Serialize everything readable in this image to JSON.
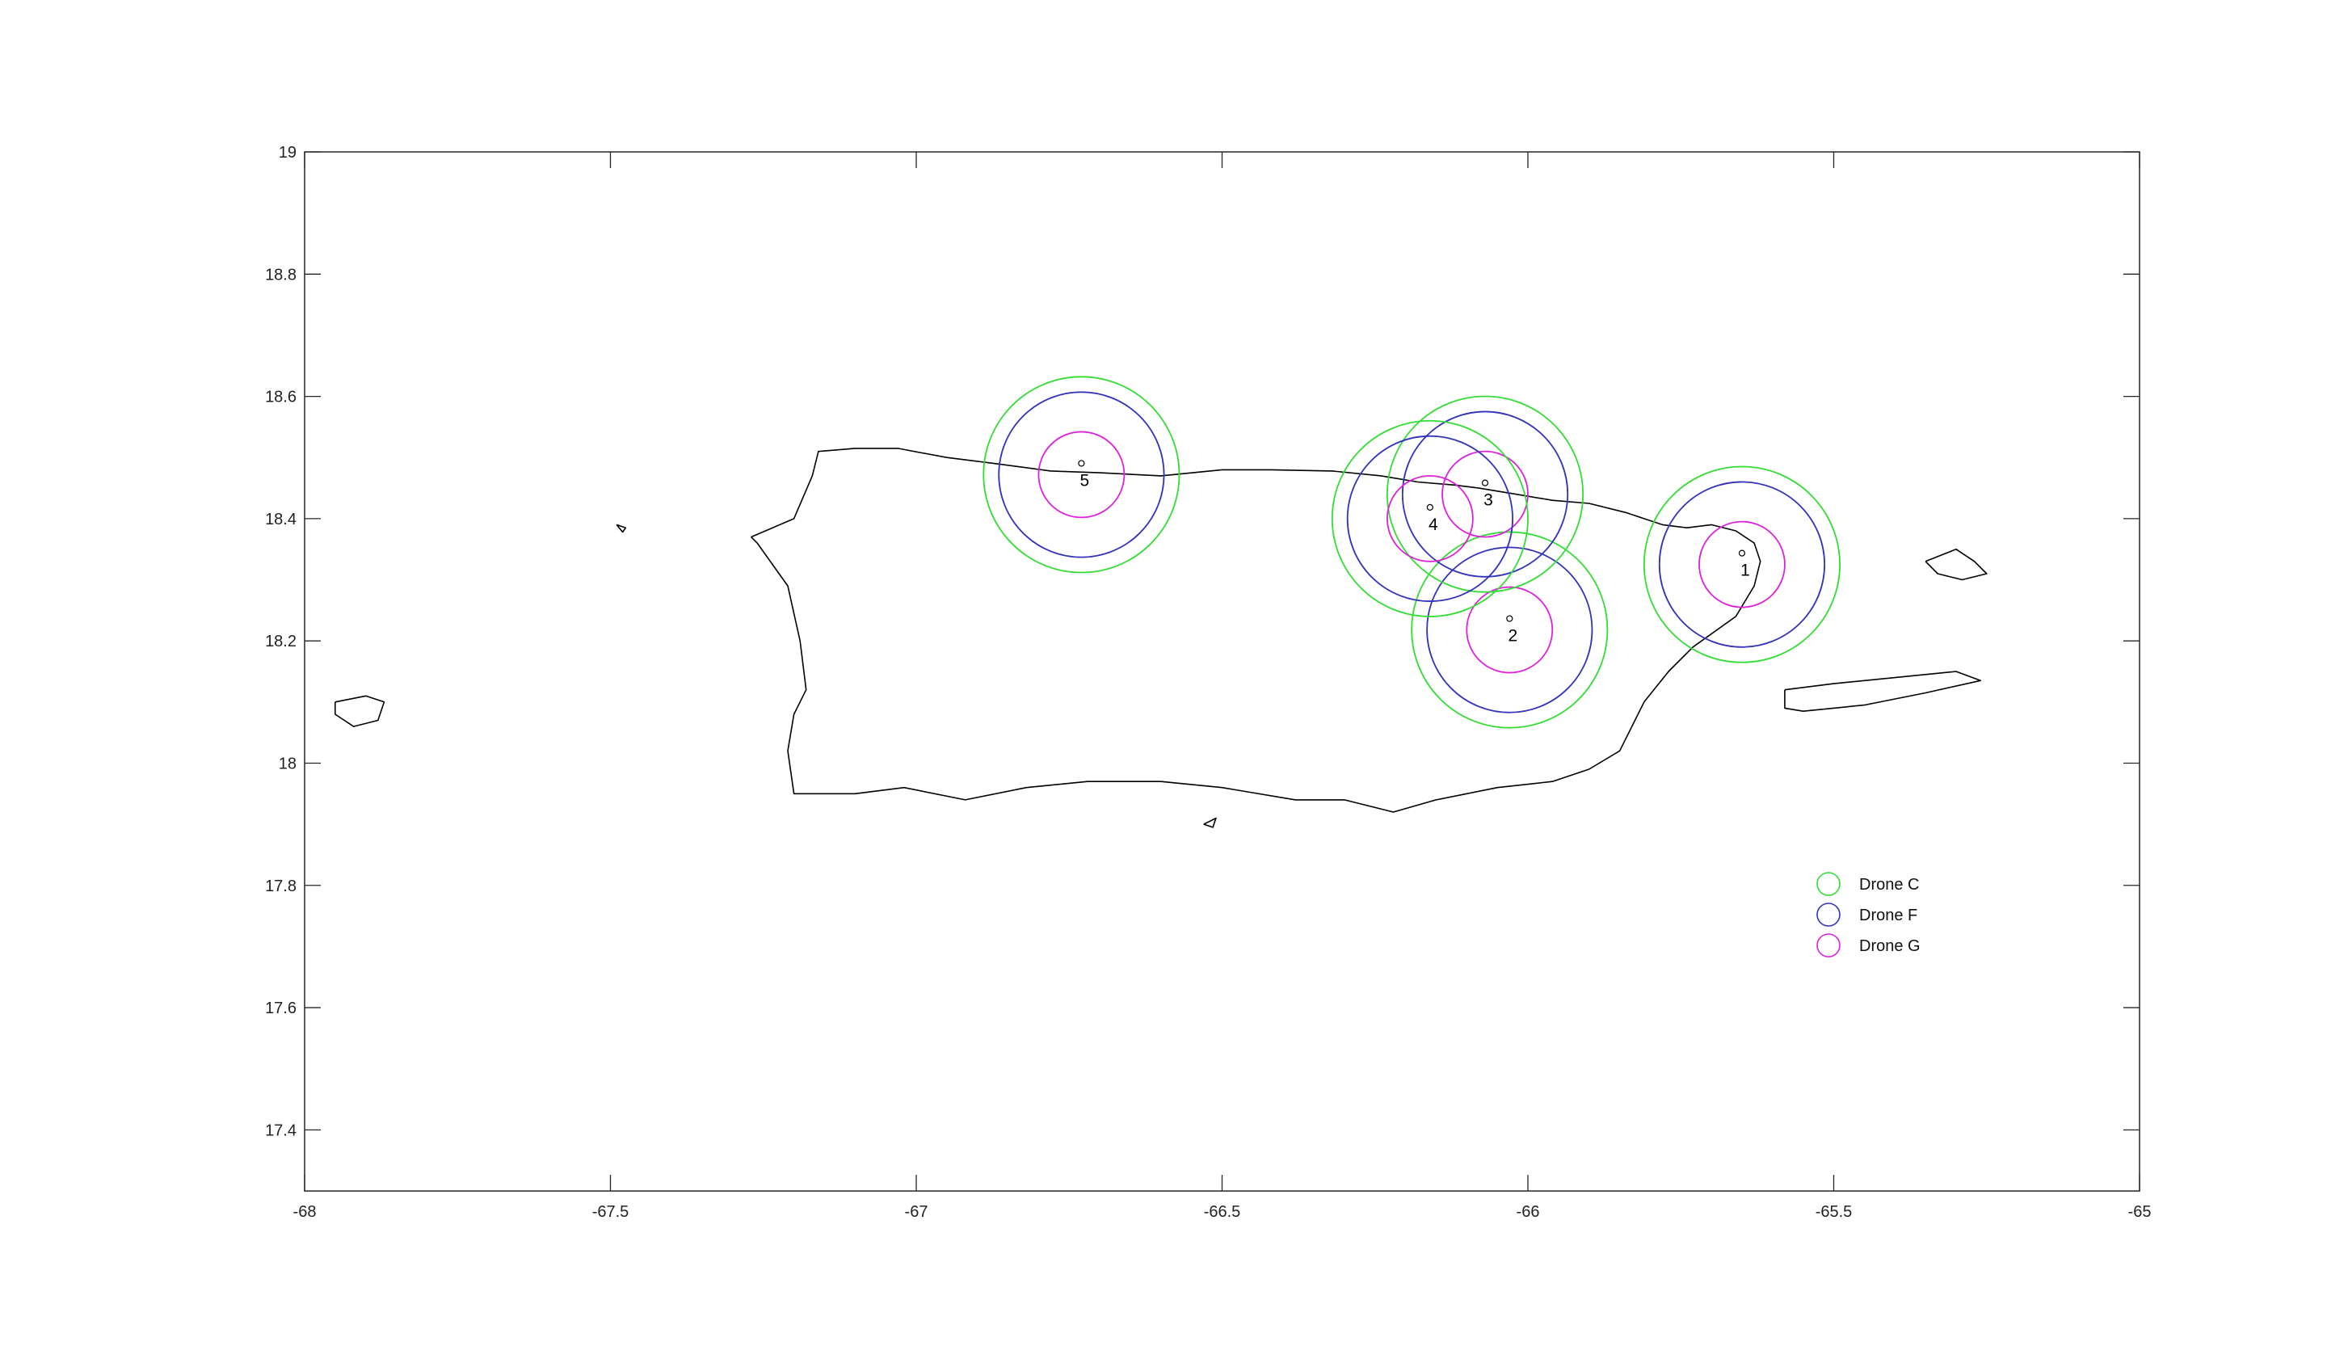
{
  "chart_data": {
    "type": "scatter",
    "title": "",
    "xlabel": "",
    "ylabel": "",
    "xlim": [
      -68,
      -65
    ],
    "ylim": [
      17.3,
      19
    ],
    "grid": false,
    "x_ticks": [
      -68,
      -67.5,
      -67,
      -66.5,
      -66,
      -65.5,
      -65
    ],
    "x_tick_labels": [
      "-68",
      "-67.5",
      "-67",
      "-66.5",
      "-66",
      "-65.5",
      "-65"
    ],
    "y_ticks": [
      17.4,
      17.6,
      17.8,
      18,
      18.2,
      18.4,
      18.6,
      18.8,
      19
    ],
    "y_tick_labels": [
      "17.4",
      "17.6",
      "17.8",
      "18",
      "18.2",
      "18.4",
      "18.6",
      "18.8",
      "19"
    ],
    "legend_position": "bottom-right",
    "sites": [
      {
        "label": "1",
        "lon": -65.65,
        "lat": 18.325
      },
      {
        "label": "2",
        "lon": -66.03,
        "lat": 18.218
      },
      {
        "label": "3",
        "lon": -66.07,
        "lat": 18.44
      },
      {
        "label": "4",
        "lon": -66.16,
        "lat": 18.4
      },
      {
        "label": "5",
        "lon": -66.73,
        "lat": 18.472
      }
    ],
    "series": [
      {
        "name": "Drone  C",
        "color": "#33dd33",
        "radius_deg": 0.16
      },
      {
        "name": "Drone  F",
        "color": "#3333bb",
        "radius_deg": 0.135
      },
      {
        "name": "Drone G",
        "color": "#dd22dd",
        "radius_deg": 0.07
      }
    ],
    "coastlines": [
      {
        "name": "puerto-rico-main",
        "points": [
          [
            -67.27,
            18.37
          ],
          [
            -67.2,
            18.4
          ],
          [
            -67.17,
            18.47
          ],
          [
            -67.16,
            18.51
          ],
          [
            -67.1,
            18.515
          ],
          [
            -67.03,
            18.515
          ],
          [
            -66.95,
            18.5
          ],
          [
            -66.87,
            18.49
          ],
          [
            -66.78,
            18.478
          ],
          [
            -66.7,
            18.475
          ],
          [
            -66.6,
            18.47
          ],
          [
            -66.5,
            18.48
          ],
          [
            -66.42,
            18.48
          ],
          [
            -66.32,
            18.478
          ],
          [
            -66.24,
            18.47
          ],
          [
            -66.18,
            18.46
          ],
          [
            -66.12,
            18.455
          ],
          [
            -66.08,
            18.45
          ],
          [
            -66.02,
            18.44
          ],
          [
            -65.96,
            18.43
          ],
          [
            -65.9,
            18.425
          ],
          [
            -65.84,
            18.41
          ],
          [
            -65.78,
            18.39
          ],
          [
            -65.74,
            18.385
          ],
          [
            -65.7,
            18.39
          ],
          [
            -65.66,
            18.38
          ],
          [
            -65.63,
            18.36
          ],
          [
            -65.62,
            18.33
          ],
          [
            -65.63,
            18.29
          ],
          [
            -65.66,
            18.24
          ],
          [
            -65.73,
            18.19
          ],
          [
            -65.77,
            18.15
          ],
          [
            -65.81,
            18.1
          ],
          [
            -65.83,
            18.06
          ],
          [
            -65.85,
            18.02
          ],
          [
            -65.9,
            17.99
          ],
          [
            -65.96,
            17.97
          ],
          [
            -66.05,
            17.96
          ],
          [
            -66.15,
            17.94
          ],
          [
            -66.22,
            17.92
          ],
          [
            -66.3,
            17.94
          ],
          [
            -66.38,
            17.94
          ],
          [
            -66.5,
            17.96
          ],
          [
            -66.6,
            17.97
          ],
          [
            -66.72,
            17.97
          ],
          [
            -66.82,
            17.96
          ],
          [
            -66.92,
            17.94
          ],
          [
            -67.02,
            17.96
          ],
          [
            -67.1,
            17.95
          ],
          [
            -67.2,
            17.95
          ],
          [
            -67.21,
            18.02
          ],
          [
            -67.2,
            18.08
          ],
          [
            -67.18,
            18.12
          ],
          [
            -67.19,
            18.2
          ],
          [
            -67.21,
            18.29
          ],
          [
            -67.26,
            18.36
          ],
          [
            -67.27,
            18.37
          ]
        ]
      },
      {
        "name": "vieques",
        "points": [
          [
            -65.58,
            18.12
          ],
          [
            -65.5,
            18.13
          ],
          [
            -65.4,
            18.14
          ],
          [
            -65.3,
            18.15
          ],
          [
            -65.26,
            18.135
          ],
          [
            -65.35,
            18.115
          ],
          [
            -65.45,
            18.095
          ],
          [
            -65.55,
            18.085
          ],
          [
            -65.58,
            18.09
          ],
          [
            -65.58,
            18.12
          ]
        ]
      },
      {
        "name": "culebra",
        "points": [
          [
            -65.35,
            18.33
          ],
          [
            -65.3,
            18.35
          ],
          [
            -65.27,
            18.33
          ],
          [
            -65.25,
            18.31
          ],
          [
            -65.29,
            18.3
          ],
          [
            -65.33,
            18.31
          ],
          [
            -65.35,
            18.33
          ]
        ]
      },
      {
        "name": "mona",
        "points": [
          [
            -67.95,
            18.1
          ],
          [
            -67.9,
            18.11
          ],
          [
            -67.87,
            18.1
          ],
          [
            -67.88,
            18.07
          ],
          [
            -67.92,
            18.06
          ],
          [
            -67.95,
            18.08
          ],
          [
            -67.95,
            18.1
          ]
        ]
      },
      {
        "name": "desecheo",
        "points": [
          [
            -67.49,
            18.39
          ],
          [
            -67.475,
            18.385
          ],
          [
            -67.48,
            18.378
          ],
          [
            -67.49,
            18.39
          ]
        ]
      },
      {
        "name": "caja-de-muertos",
        "points": [
          [
            -66.53,
            17.9
          ],
          [
            -66.51,
            17.91
          ],
          [
            -66.515,
            17.895
          ],
          [
            -66.53,
            17.9
          ]
        ]
      }
    ]
  }
}
